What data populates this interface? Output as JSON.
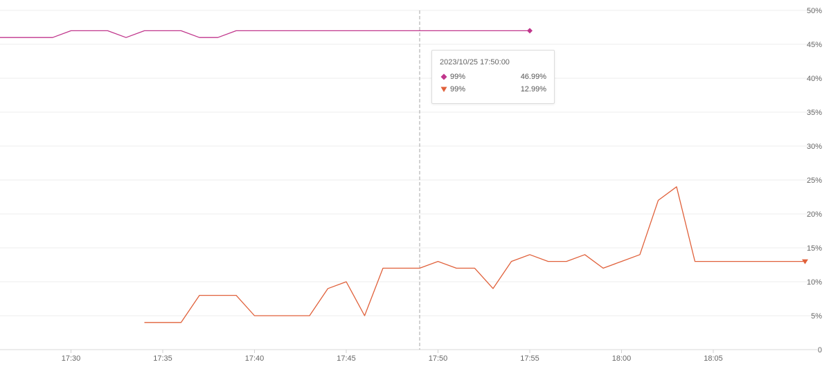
{
  "chart_data": {
    "type": "line",
    "x_ticks": [
      "17:30",
      "17:35",
      "17:40",
      "17:45",
      "17:50",
      "17:55",
      "18:00",
      "18:05"
    ],
    "y_ticks": [
      "0",
      "5%",
      "10%",
      "15%",
      "20%",
      "25%",
      "30%",
      "35%",
      "40%",
      "45%",
      "50%"
    ],
    "ylim": [
      0,
      50
    ],
    "y_unit": "%",
    "y_axis_side": "right",
    "grid": true,
    "series": [
      {
        "name": "99%",
        "color": "#c0368c",
        "marker": "diamond",
        "points": [
          [
            "17:26",
            46
          ],
          [
            "17:27",
            46
          ],
          [
            "17:28",
            46
          ],
          [
            "17:29",
            46
          ],
          [
            "17:30",
            47
          ],
          [
            "17:31",
            47
          ],
          [
            "17:32",
            47
          ],
          [
            "17:33",
            46
          ],
          [
            "17:34",
            47
          ],
          [
            "17:35",
            47
          ],
          [
            "17:36",
            47
          ],
          [
            "17:37",
            46
          ],
          [
            "17:38",
            46
          ],
          [
            "17:39",
            47
          ],
          [
            "17:40",
            47
          ],
          [
            "17:41",
            47
          ],
          [
            "17:42",
            47
          ],
          [
            "17:43",
            47
          ],
          [
            "17:44",
            47
          ],
          [
            "17:45",
            47
          ],
          [
            "17:46",
            47
          ],
          [
            "17:47",
            47
          ],
          [
            "17:48",
            47
          ],
          [
            "17:49",
            47
          ],
          [
            "17:50",
            47
          ],
          [
            "17:51",
            47
          ],
          [
            "17:52",
            47
          ],
          [
            "17:53",
            47
          ],
          [
            "17:54",
            47
          ],
          [
            "17:55",
            47
          ]
        ]
      },
      {
        "name": "99%",
        "color": "#e0603a",
        "marker": "triangle-down",
        "points": [
          [
            "17:34",
            4
          ],
          [
            "17:35",
            4
          ],
          [
            "17:36",
            4
          ],
          [
            "17:37",
            8
          ],
          [
            "17:38",
            8
          ],
          [
            "17:39",
            8
          ],
          [
            "17:40",
            5
          ],
          [
            "17:41",
            5
          ],
          [
            "17:42",
            5
          ],
          [
            "17:43",
            5
          ],
          [
            "17:44",
            9
          ],
          [
            "17:45",
            10
          ],
          [
            "17:46",
            5
          ],
          [
            "17:47",
            12
          ],
          [
            "17:48",
            12
          ],
          [
            "17:49",
            12
          ],
          [
            "17:50",
            13
          ],
          [
            "17:51",
            12
          ],
          [
            "17:52",
            12
          ],
          [
            "17:53",
            9
          ],
          [
            "17:54",
            13
          ],
          [
            "17:55",
            14
          ],
          [
            "17:56",
            13
          ],
          [
            "17:57",
            13
          ],
          [
            "17:58",
            14
          ],
          [
            "17:59",
            12
          ],
          [
            "18:00",
            13
          ],
          [
            "18:01",
            14
          ],
          [
            "18:02",
            22
          ],
          [
            "18:03",
            24
          ],
          [
            "18:04",
            13
          ],
          [
            "18:05",
            13
          ],
          [
            "18:06",
            13
          ],
          [
            "18:07",
            13
          ],
          [
            "18:08",
            13
          ],
          [
            "18:09",
            13
          ],
          [
            "18:10",
            13
          ]
        ]
      }
    ],
    "crosshair_at": "17:49",
    "tooltip": {
      "title": "2023/10/25 17:50:00",
      "rows": [
        {
          "name": "99%",
          "value": "46.99%",
          "color": "#c0368c",
          "marker": "diamond"
        },
        {
          "name": "99%",
          "value": "12.99%",
          "color": "#e0603a",
          "marker": "triangle-down"
        }
      ]
    }
  }
}
